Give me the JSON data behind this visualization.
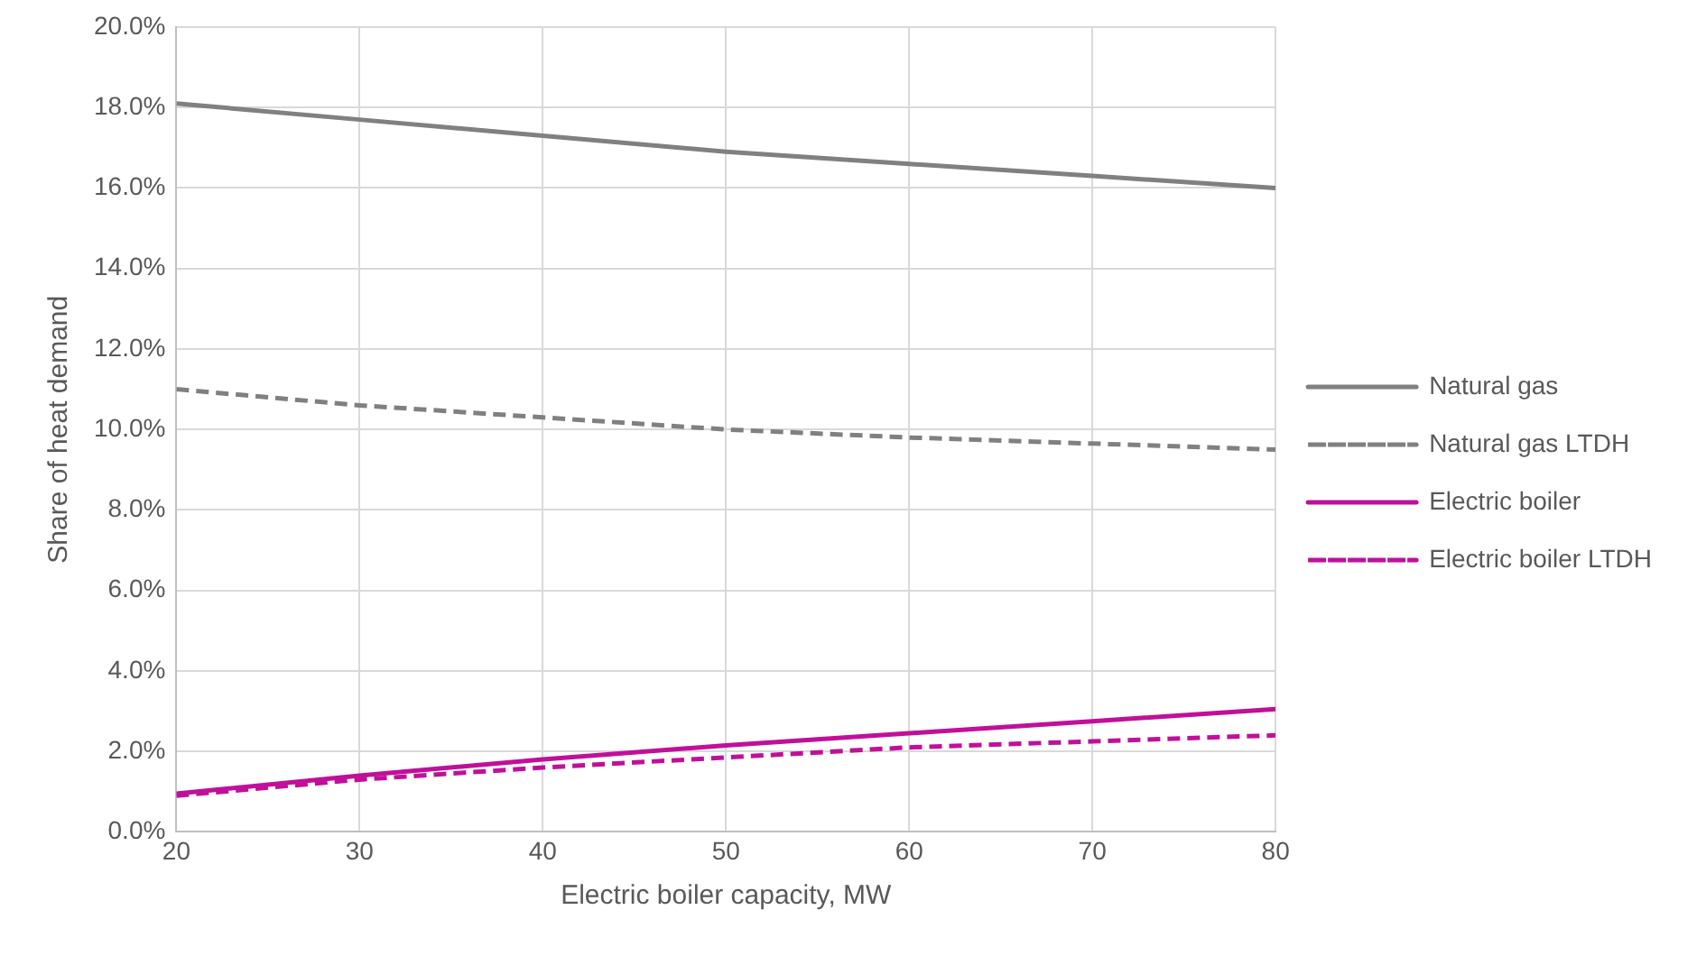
{
  "chart_data": {
    "type": "line",
    "xlabel": "Electric boiler capacity, MW",
    "ylabel": "Share of heat demand",
    "x": [
      20,
      30,
      40,
      50,
      60,
      70,
      80
    ],
    "xlim": [
      20,
      80
    ],
    "xticks": [
      20,
      30,
      40,
      50,
      60,
      70,
      80
    ],
    "ylim": [
      0,
      20
    ],
    "yticks": [
      {
        "value": 0,
        "label": "0.0%"
      },
      {
        "value": 2,
        "label": "2.0%"
      },
      {
        "value": 4,
        "label": "4.0%"
      },
      {
        "value": 6,
        "label": "6.0%"
      },
      {
        "value": 8,
        "label": "8.0%"
      },
      {
        "value": 10,
        "label": "10.0%"
      },
      {
        "value": 12,
        "label": "12.0%"
      },
      {
        "value": 14,
        "label": "14.0%"
      },
      {
        "value": 16,
        "label": "16.0%"
      },
      {
        "value": 18,
        "label": "18.0%"
      },
      {
        "value": 20,
        "label": "20.0%"
      }
    ],
    "grid": true,
    "legend": "right",
    "marker": "none",
    "series": [
      {
        "name": "Natural gas",
        "color": "#808080",
        "line_style": "solid",
        "values": [
          18.1,
          17.7,
          17.3,
          16.9,
          16.6,
          16.3,
          16.0
        ]
      },
      {
        "name": "Natural gas LTDH",
        "color": "#808080",
        "line_style": "dashed",
        "values": [
          11.0,
          10.6,
          10.3,
          10.0,
          9.8,
          9.65,
          9.5
        ]
      },
      {
        "name": "Electric boiler",
        "color": "#c0109a",
        "line_style": "solid",
        "values": [
          0.95,
          1.4,
          1.8,
          2.15,
          2.45,
          2.75,
          3.05
        ]
      },
      {
        "name": "Electric boiler LTDH",
        "color": "#c0109a",
        "line_style": "dashed",
        "values": [
          0.9,
          1.3,
          1.6,
          1.85,
          2.1,
          2.25,
          2.4
        ]
      }
    ]
  }
}
